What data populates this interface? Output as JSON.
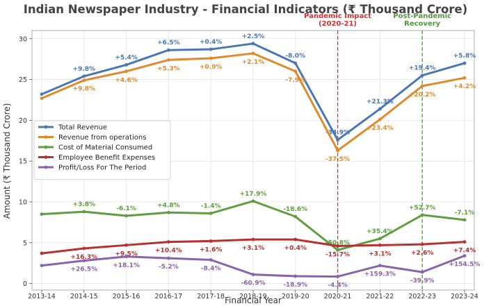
{
  "chart_data": {
    "type": "line",
    "title": "Indian Newspaper Industry - Financial Indicators (₹ Thousand Crore)",
    "xlabel": "Financial Year",
    "ylabel": "Amount (₹ Thousand Crore)",
    "ylim": [
      -0.8,
      31
    ],
    "yticks": [
      0,
      5,
      10,
      15,
      20,
      25,
      30
    ],
    "grid": true,
    "legend_position": "center-left",
    "categories": [
      "2013-14",
      "2014-15",
      "2015-16",
      "2016-17",
      "2017-18",
      "2018-19",
      "2019-20",
      "2020-21",
      "2021-22",
      "2022-23",
      "2023-24"
    ],
    "series": [
      {
        "name": "Total Revenue",
        "color": "#4a77b4",
        "values": [
          23.2,
          25.4,
          26.8,
          28.6,
          28.7,
          29.4,
          27.0,
          17.6,
          21.4,
          25.5,
          27.0
        ],
        "labels": [
          "",
          "+9.8%",
          "+5.4%",
          "+6.5%",
          "+0.4%",
          "+2.5%",
          "-8.0%",
          "-34.9%",
          "+21.3%",
          "+19.4%",
          "+5.8%"
        ],
        "label_pos": "above"
      },
      {
        "name": "Revenue from operations",
        "color": "#e08a2c",
        "values": [
          22.7,
          24.9,
          26.0,
          27.4,
          27.6,
          28.2,
          26.0,
          16.3,
          20.1,
          24.2,
          25.2
        ],
        "labels": [
          "",
          "+9.8%",
          "+4.6%",
          "+5.3%",
          "+0.9%",
          "+2.1%",
          "-7.9%",
          "-37.5%",
          "+23.4%",
          "+20.2%",
          "+4.2%"
        ],
        "label_pos": "below"
      },
      {
        "name": "Cost of Material Consumed",
        "color": "#5f9e3e",
        "values": [
          8.5,
          8.8,
          8.3,
          8.7,
          8.6,
          10.1,
          8.2,
          4.1,
          5.5,
          8.4,
          7.8
        ],
        "labels": [
          "",
          "+3.8%",
          "-6.1%",
          "+4.8%",
          "-1.4%",
          "+17.9%",
          "-18.6%",
          "-50.8%",
          "+35.4%",
          "+52.7%",
          "-7.1%"
        ],
        "label_pos": "above"
      },
      {
        "name": "Employee Benefit Expenses",
        "color": "#b8302f",
        "values": [
          3.7,
          4.3,
          4.7,
          5.1,
          5.2,
          5.4,
          5.4,
          4.6,
          4.7,
          4.8,
          5.1
        ],
        "labels": [
          "",
          "+16.3%",
          "+9.5%",
          "+10.4%",
          "+1.6%",
          "+3.1%",
          "+0.4%",
          "-15.7%",
          "+3.1%",
          "+2.6%",
          "+7.4%"
        ],
        "label_pos": "below"
      },
      {
        "name": "Profit/Loss For The Period",
        "color": "#8a63aa",
        "values": [
          2.2,
          2.8,
          3.3,
          3.1,
          2.9,
          1.1,
          0.9,
          0.85,
          2.2,
          1.4,
          3.4
        ],
        "labels": [
          "",
          "+26.5%",
          "+18.1%",
          "-5.2%",
          "-8.4%",
          "-60.9%",
          "-18.9%",
          "-4.4%",
          "+159.3%",
          "-39.9%",
          "+154.5%"
        ],
        "label_pos": "below"
      }
    ],
    "annotations": [
      {
        "text_lines": [
          "Pandemic Impact",
          "(2020-21)"
        ],
        "at_category": "2020-21",
        "color": "#d62f2f"
      },
      {
        "text_lines": [
          "Post-Pandemic",
          "Recovery"
        ],
        "at_category": "2022-23",
        "color": "#4e9a3a"
      }
    ]
  }
}
